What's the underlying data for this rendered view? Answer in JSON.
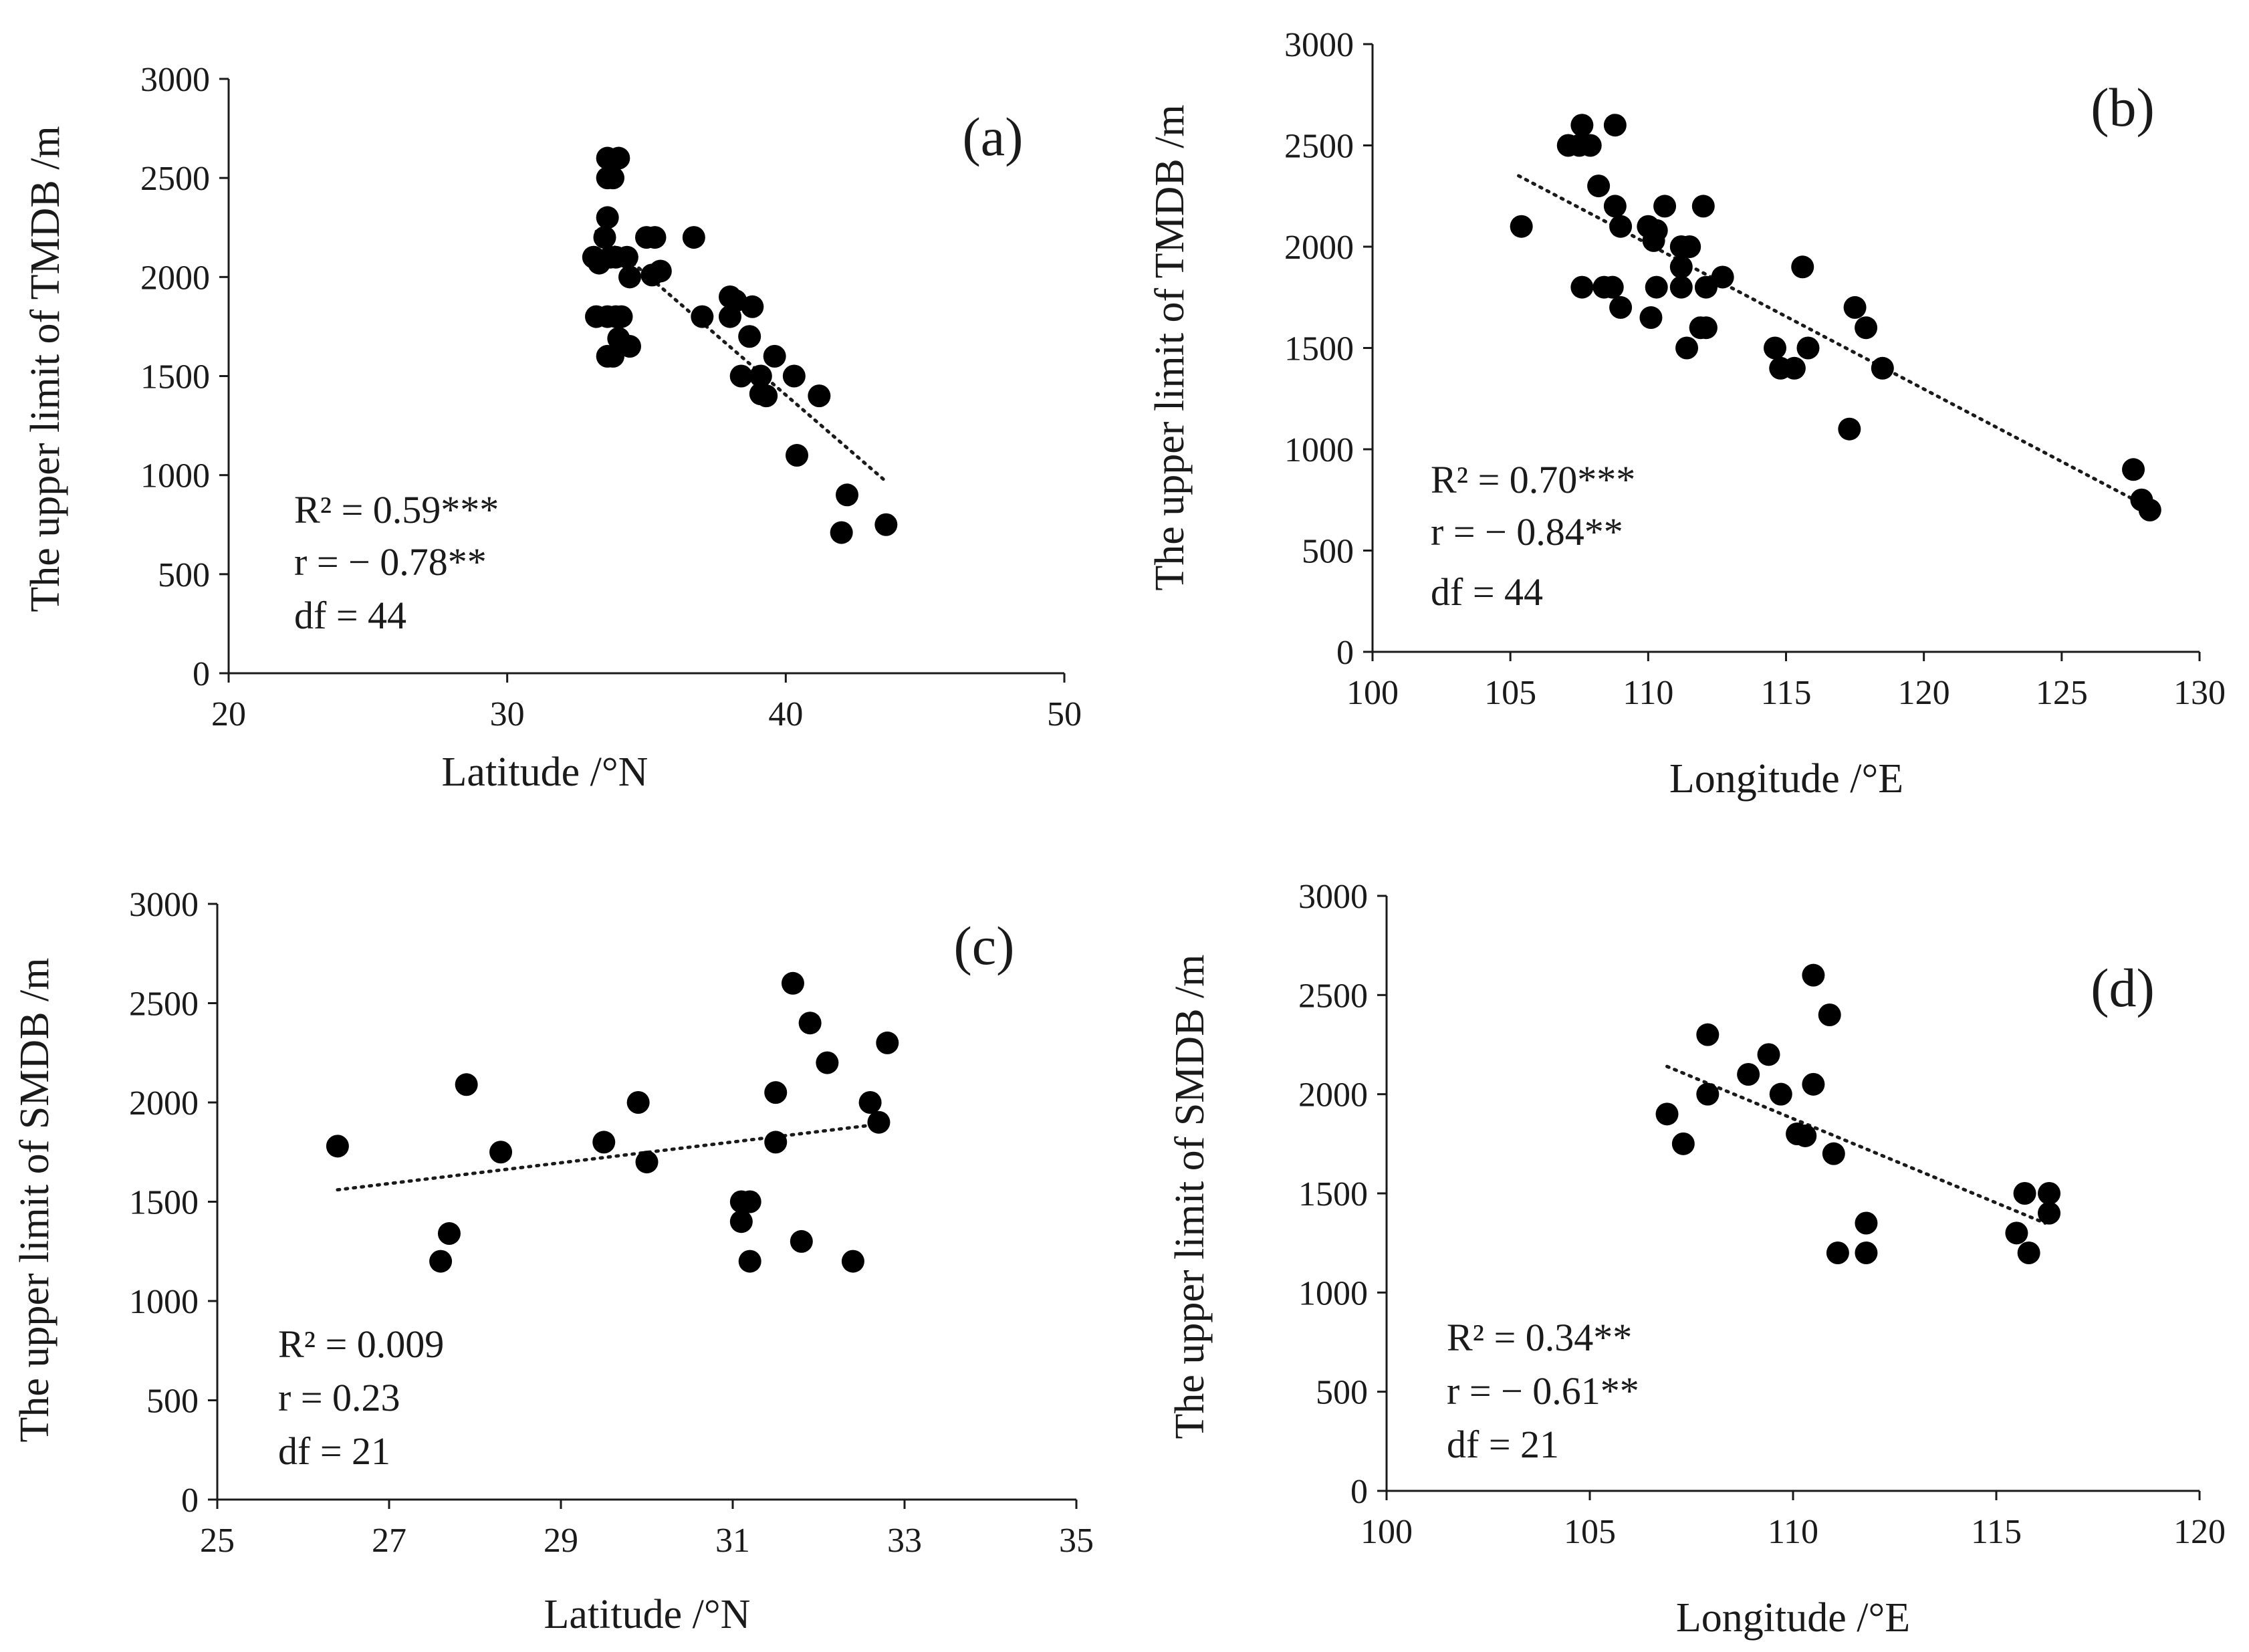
{
  "chart_data": [
    {
      "type": "scatter",
      "panel": "(a)",
      "xlabel": "Latitude /°N",
      "ylabel": "The upper limit of  TMDB /m",
      "xlim": [
        20,
        50
      ],
      "ylim": [
        0,
        3000
      ],
      "xticks": [
        20,
        30,
        40,
        50
      ],
      "yticks": [
        0,
        500,
        1000,
        1500,
        2000,
        2500,
        3000
      ],
      "stats": [
        "R² = 0.59***",
        "r = − 0.78**",
        "df = 44"
      ],
      "trendline": {
        "x": [
          33.2,
          43.5
        ],
        "y": [
          2230,
          980
        ]
      },
      "points": [
        [
          33.6,
          2600
        ],
        [
          34.0,
          2600
        ],
        [
          33.6,
          2500
        ],
        [
          33.8,
          2500
        ],
        [
          33.6,
          2300
        ],
        [
          33.5,
          2200
        ],
        [
          36.7,
          2200
        ],
        [
          35.0,
          2200
        ],
        [
          35.3,
          2200
        ],
        [
          33.1,
          2100
        ],
        [
          33.7,
          2100
        ],
        [
          33.9,
          2100
        ],
        [
          34.3,
          2100
        ],
        [
          33.3,
          2070
        ],
        [
          35.5,
          2030
        ],
        [
          35.2,
          2010
        ],
        [
          34.4,
          2000
        ],
        [
          38.0,
          1900
        ],
        [
          38.2,
          1880
        ],
        [
          38.8,
          1850
        ],
        [
          37.0,
          1800
        ],
        [
          38.0,
          1800
        ],
        [
          33.2,
          1800
        ],
        [
          33.6,
          1800
        ],
        [
          33.9,
          1800
        ],
        [
          34.1,
          1800
        ],
        [
          38.7,
          1700
        ],
        [
          34.0,
          1690
        ],
        [
          34.4,
          1650
        ],
        [
          33.6,
          1600
        ],
        [
          33.8,
          1600
        ],
        [
          39.6,
          1600
        ],
        [
          38.4,
          1500
        ],
        [
          39.1,
          1500
        ],
        [
          40.3,
          1500
        ],
        [
          39.1,
          1410
        ],
        [
          39.3,
          1400
        ],
        [
          41.2,
          1400
        ],
        [
          40.4,
          1100
        ],
        [
          42.2,
          900
        ],
        [
          43.6,
          750
        ],
        [
          42.0,
          710
        ]
      ]
    },
    {
      "type": "scatter",
      "panel": "(b)",
      "xlabel": "Longitude /°E",
      "ylabel": "The upper limit of TMDB /m",
      "xlim": [
        100,
        130
      ],
      "ylim": [
        0,
        3000
      ],
      "xticks": [
        100,
        105,
        110,
        115,
        120,
        125,
        130
      ],
      "yticks": [
        0,
        500,
        1000,
        1500,
        2000,
        2500,
        3000
      ],
      "stats": [
        "R² = 0.70***",
        "r =  − 0.84**",
        "df = 44"
      ],
      "trendline": {
        "x": [
          105.3,
          128.2
        ],
        "y": [
          2350,
          710
        ]
      },
      "points": [
        [
          107.6,
          2600
        ],
        [
          108.8,
          2600
        ],
        [
          107.1,
          2500
        ],
        [
          107.5,
          2500
        ],
        [
          107.9,
          2500
        ],
        [
          108.2,
          2300
        ],
        [
          108.8,
          2200
        ],
        [
          110.6,
          2200
        ],
        [
          112.0,
          2200
        ],
        [
          105.4,
          2100
        ],
        [
          109.0,
          2100
        ],
        [
          110.0,
          2100
        ],
        [
          110.3,
          2080
        ],
        [
          110.2,
          2030
        ],
        [
          111.2,
          2000
        ],
        [
          111.5,
          2000
        ],
        [
          111.2,
          1900
        ],
        [
          115.6,
          1900
        ],
        [
          112.7,
          1850
        ],
        [
          107.6,
          1800
        ],
        [
          108.4,
          1800
        ],
        [
          108.7,
          1800
        ],
        [
          110.3,
          1800
        ],
        [
          111.2,
          1800
        ],
        [
          112.1,
          1800
        ],
        [
          109.0,
          1700
        ],
        [
          117.5,
          1700
        ],
        [
          110.1,
          1650
        ],
        [
          111.9,
          1600
        ],
        [
          112.1,
          1600
        ],
        [
          117.9,
          1600
        ],
        [
          111.4,
          1500
        ],
        [
          114.6,
          1500
        ],
        [
          115.8,
          1500
        ],
        [
          114.8,
          1400
        ],
        [
          115.3,
          1400
        ],
        [
          118.5,
          1400
        ],
        [
          117.3,
          1100
        ],
        [
          127.6,
          900
        ],
        [
          127.9,
          750
        ],
        [
          128.2,
          700
        ]
      ]
    },
    {
      "type": "scatter",
      "panel": "(c)",
      "xlabel": "Latitude /°N",
      "ylabel": "The upper limit of SMDB /m",
      "xlim": [
        25,
        35
      ],
      "ylim": [
        0,
        3000
      ],
      "xticks": [
        25,
        27,
        29,
        31,
        33,
        35
      ],
      "yticks": [
        0,
        500,
        1000,
        1500,
        2000,
        2500,
        3000
      ],
      "stats": [
        "R² = 0.009",
        "r = 0.23",
        "df = 21"
      ],
      "trendline": {
        "x": [
          26.4,
          32.7
        ],
        "y": [
          1560,
          1890
        ]
      },
      "points": [
        [
          26.4,
          1780
        ],
        [
          27.6,
          1200
        ],
        [
          27.7,
          1340
        ],
        [
          27.9,
          2090
        ],
        [
          28.3,
          1750
        ],
        [
          29.5,
          1800
        ],
        [
          29.9,
          2000
        ],
        [
          30.0,
          1700
        ],
        [
          31.1,
          1500
        ],
        [
          31.1,
          1400
        ],
        [
          31.2,
          1500
        ],
        [
          31.2,
          1200
        ],
        [
          31.5,
          2050
        ],
        [
          31.5,
          1800
        ],
        [
          31.7,
          2600
        ],
        [
          31.8,
          1300
        ],
        [
          31.9,
          2400
        ],
        [
          32.1,
          2200
        ],
        [
          32.4,
          1200
        ],
        [
          32.6,
          2000
        ],
        [
          32.7,
          1900
        ],
        [
          32.8,
          2300
        ]
      ]
    },
    {
      "type": "scatter",
      "panel": "(d)",
      "xlabel": "Longitude /°E",
      "ylabel": "The upper limit of SMDB /m",
      "xlim": [
        100,
        120
      ],
      "ylim": [
        0,
        3000
      ],
      "xticks": [
        100,
        105,
        110,
        115,
        120
      ],
      "yticks": [
        0,
        500,
        1000,
        1500,
        2000,
        2500,
        3000
      ],
      "stats": [
        "R² = 0.34**",
        "r = − 0.61**",
        "df = 21"
      ],
      "trendline": {
        "x": [
          106.9,
          116.2
        ],
        "y": [
          2140,
          1350
        ]
      },
      "points": [
        [
          106.9,
          1900
        ],
        [
          107.3,
          1750
        ],
        [
          107.9,
          2300
        ],
        [
          107.9,
          2000
        ],
        [
          108.9,
          2100
        ],
        [
          109.4,
          2200
        ],
        [
          109.7,
          2000
        ],
        [
          110.1,
          1800
        ],
        [
          110.3,
          1790
        ],
        [
          110.5,
          2600
        ],
        [
          110.5,
          2050
        ],
        [
          110.9,
          2400
        ],
        [
          111.0,
          1700
        ],
        [
          111.1,
          1200
        ],
        [
          111.8,
          1350
        ],
        [
          111.8,
          1200
        ],
        [
          115.5,
          1300
        ],
        [
          115.7,
          1500
        ],
        [
          115.8,
          1200
        ],
        [
          116.3,
          1500
        ],
        [
          116.3,
          1400
        ]
      ]
    }
  ]
}
